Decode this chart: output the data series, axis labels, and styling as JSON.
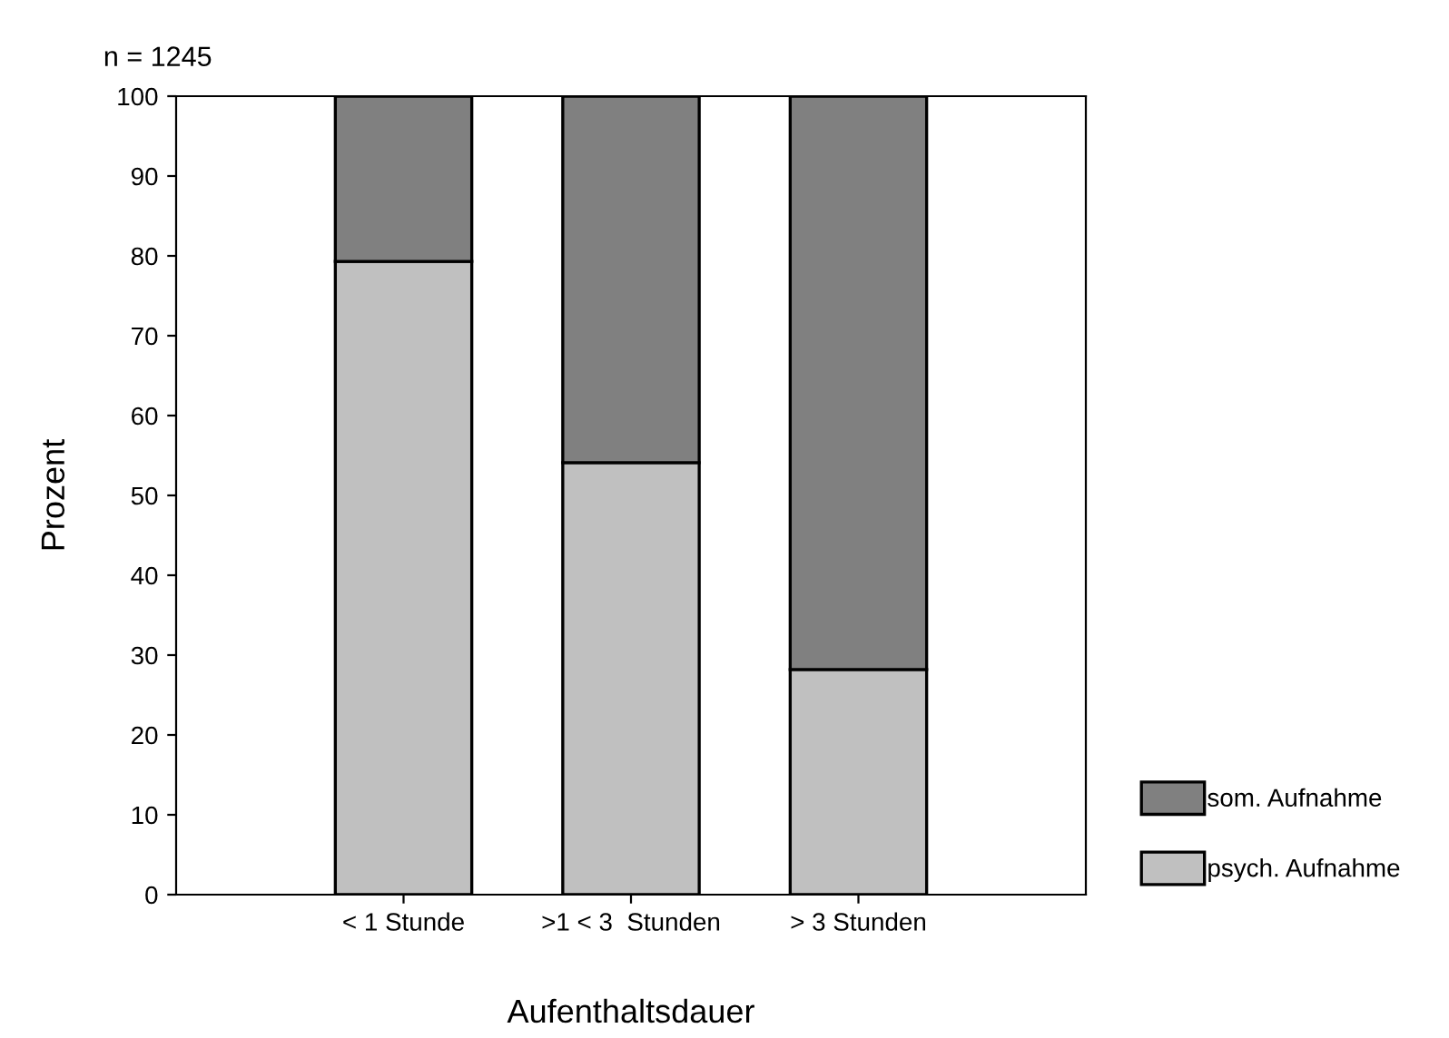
{
  "chart_data": {
    "type": "bar",
    "stacked": true,
    "title": "n = 1245",
    "xlabel": "Aufenthaltsdauer",
    "ylabel": "Prozent",
    "categories": [
      "< 1 Stunde",
      ">1 < 3  Stunden",
      "> 3 Stunden"
    ],
    "series": [
      {
        "name": "psych. Aufnahme",
        "color": "#c0c0c0",
        "values": [
          79.3,
          54.1,
          28.2
        ]
      },
      {
        "name": "som. Aufnahme",
        "color": "#808080",
        "values": [
          20.7,
          45.9,
          71.8
        ]
      }
    ],
    "ylim": [
      0,
      100
    ],
    "yticks": [
      0,
      10,
      20,
      30,
      40,
      50,
      60,
      70,
      80,
      90,
      100
    ],
    "grid": false,
    "legend": "bottom right"
  }
}
